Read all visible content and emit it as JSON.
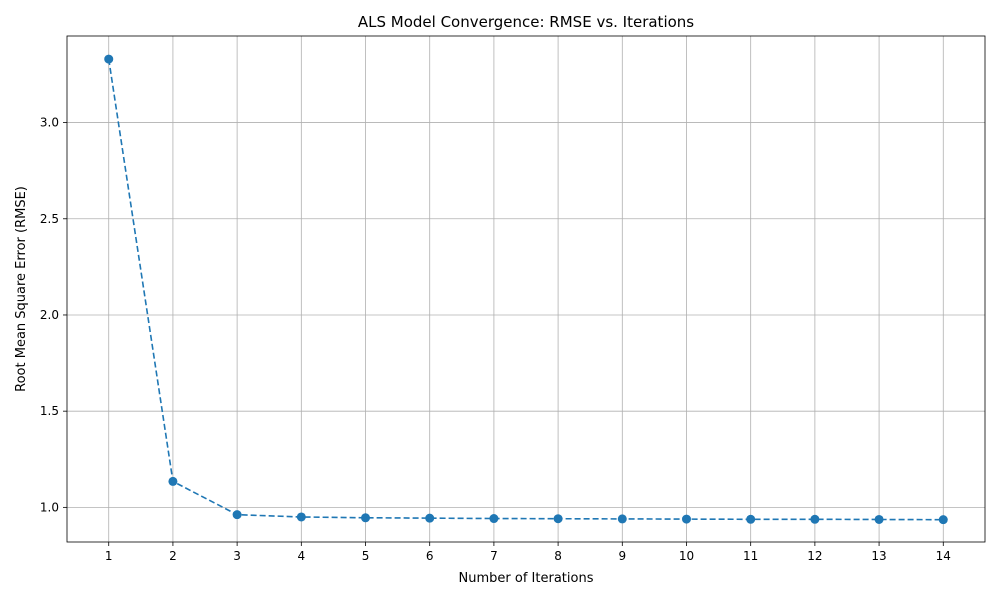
{
  "chart_data": {
    "type": "line",
    "title": "ALS Model Convergence: RMSE vs. Iterations",
    "xlabel": "Number of Iterations",
    "ylabel": "Root Mean Square Error (RMSE)",
    "x": [
      1,
      2,
      3,
      4,
      5,
      6,
      7,
      8,
      9,
      10,
      11,
      12,
      13,
      14
    ],
    "xticks": [
      "1",
      "2",
      "3",
      "4",
      "5",
      "6",
      "7",
      "8",
      "9",
      "10",
      "11",
      "12",
      "13",
      "14"
    ],
    "yticks": [
      1.0,
      1.5,
      2.0,
      2.5,
      3.0
    ],
    "ytick_labels": [
      "1.0",
      "1.5",
      "2.0",
      "2.5",
      "3.0"
    ],
    "xlim": [
      0.35,
      14.65
    ],
    "ylim": [
      0.82,
      3.45
    ],
    "grid": true,
    "legend": "none",
    "series": [
      {
        "values": [
          3.33,
          1.135,
          0.962,
          0.95,
          0.946,
          0.944,
          0.942,
          0.941,
          0.94,
          0.939,
          0.938,
          0.938,
          0.937,
          0.936
        ],
        "color": "#1f77b4",
        "line_style": "dashed",
        "marker": "circle"
      }
    ]
  }
}
